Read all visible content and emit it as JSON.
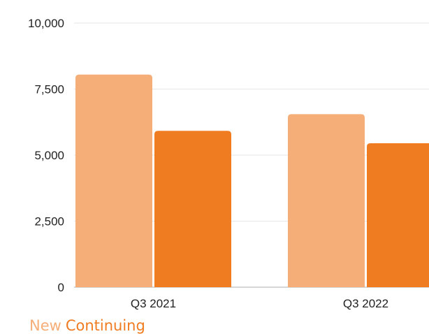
{
  "chart_data": {
    "type": "bar",
    "categories": [
      "Q3 2021",
      "Q3 2022"
    ],
    "series": [
      {
        "name": "New",
        "values": [
          8050,
          6550
        ],
        "color": "#F5AE78"
      },
      {
        "name": "Continuing",
        "values": [
          5920,
          5450
        ],
        "color": "#F07C22"
      }
    ],
    "ylim": [
      0,
      10000
    ],
    "yticks": [
      0,
      2500,
      5000,
      7500,
      10000
    ],
    "ytick_labels": [
      "0",
      "2,500",
      "5,000",
      "7,500",
      "10,000"
    ],
    "grid": true,
    "legend_position": "bottom-left"
  }
}
